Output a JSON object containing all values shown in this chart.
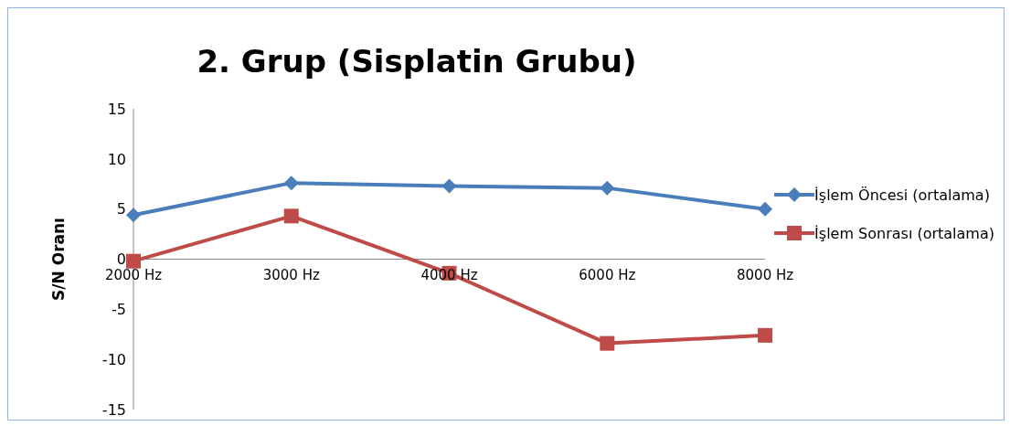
{
  "chart_data": {
    "type": "line",
    "title": "2. Grup (Sisplatin Grubu)",
    "ylabel": "S/N Oranı",
    "categories": [
      "2000 Hz",
      "3000 Hz",
      "4000 Hz",
      "6000 Hz",
      "8000 Hz"
    ],
    "series": [
      {
        "name": "İşlem Öncesi (ortalama)",
        "color": "#4a7ebb",
        "marker": "diamond",
        "values": [
          4.4,
          7.6,
          7.3,
          7.1,
          5.0
        ]
      },
      {
        "name": "İşlem Sonrası (ortalama)",
        "color": "#be4b48",
        "marker": "square",
        "values": [
          -0.2,
          4.3,
          -1.4,
          -8.4,
          -7.6
        ]
      }
    ],
    "ylim": [
      -15,
      15
    ],
    "yticks": [
      -15,
      -10,
      -5,
      0,
      5,
      10,
      15
    ],
    "grid": false,
    "legend": "right"
  }
}
